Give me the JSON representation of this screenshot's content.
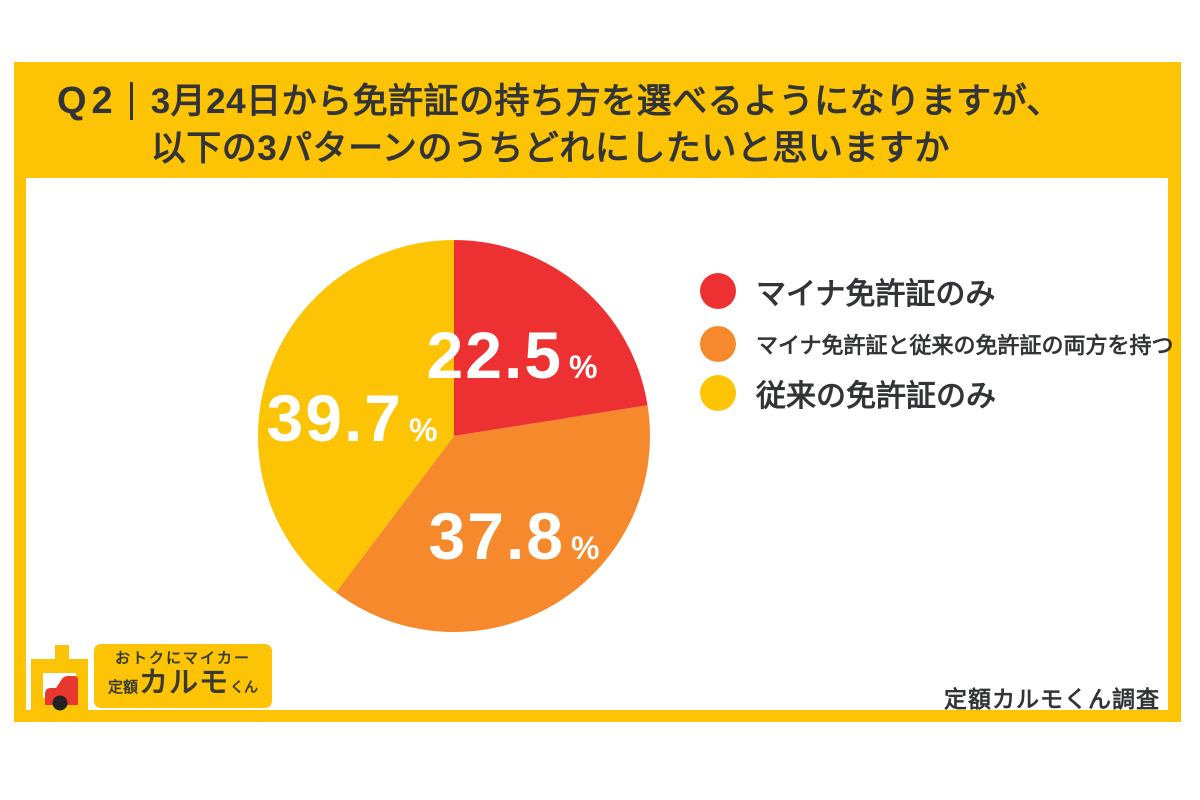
{
  "header": {
    "q_label": "Q2",
    "question_line1": "3月24日から免許証の持ち方を選べるようになりますが、",
    "question_line2": "以下の3パターンのうちどれにしたいと思いますか"
  },
  "chart_data": {
    "type": "pie",
    "title": "Q2｜3月24日から免許証の持ち方を選べるようになりますが、以下の3パターンのうちどれにしたいと思いますか",
    "start_angle_deg": 0,
    "direction": "clockwise",
    "value_suffix": "%",
    "legend_position": "right",
    "slices": [
      {
        "label": "マイナ免許証のみ",
        "value": 22.5,
        "color": "#ED3133"
      },
      {
        "label": "マイナ免許証と従来の免許証の両方を持つ",
        "value": 37.8,
        "color": "#F6892B"
      },
      {
        "label": "従来の免許証のみ",
        "value": 39.7,
        "color": "#FCC405"
      }
    ]
  },
  "logo": {
    "tagline": "おトクにマイカー",
    "brand_prefix": "定額",
    "brand_name": "カルモ",
    "brand_suffix": "くん"
  },
  "footer": {
    "source": "定額カルモくん調査"
  },
  "colors": {
    "brand_yellow": "#FCC405",
    "red": "#ED3133",
    "orange": "#F6892B",
    "text_dark": "#333438",
    "white": "#FFFFFF"
  }
}
